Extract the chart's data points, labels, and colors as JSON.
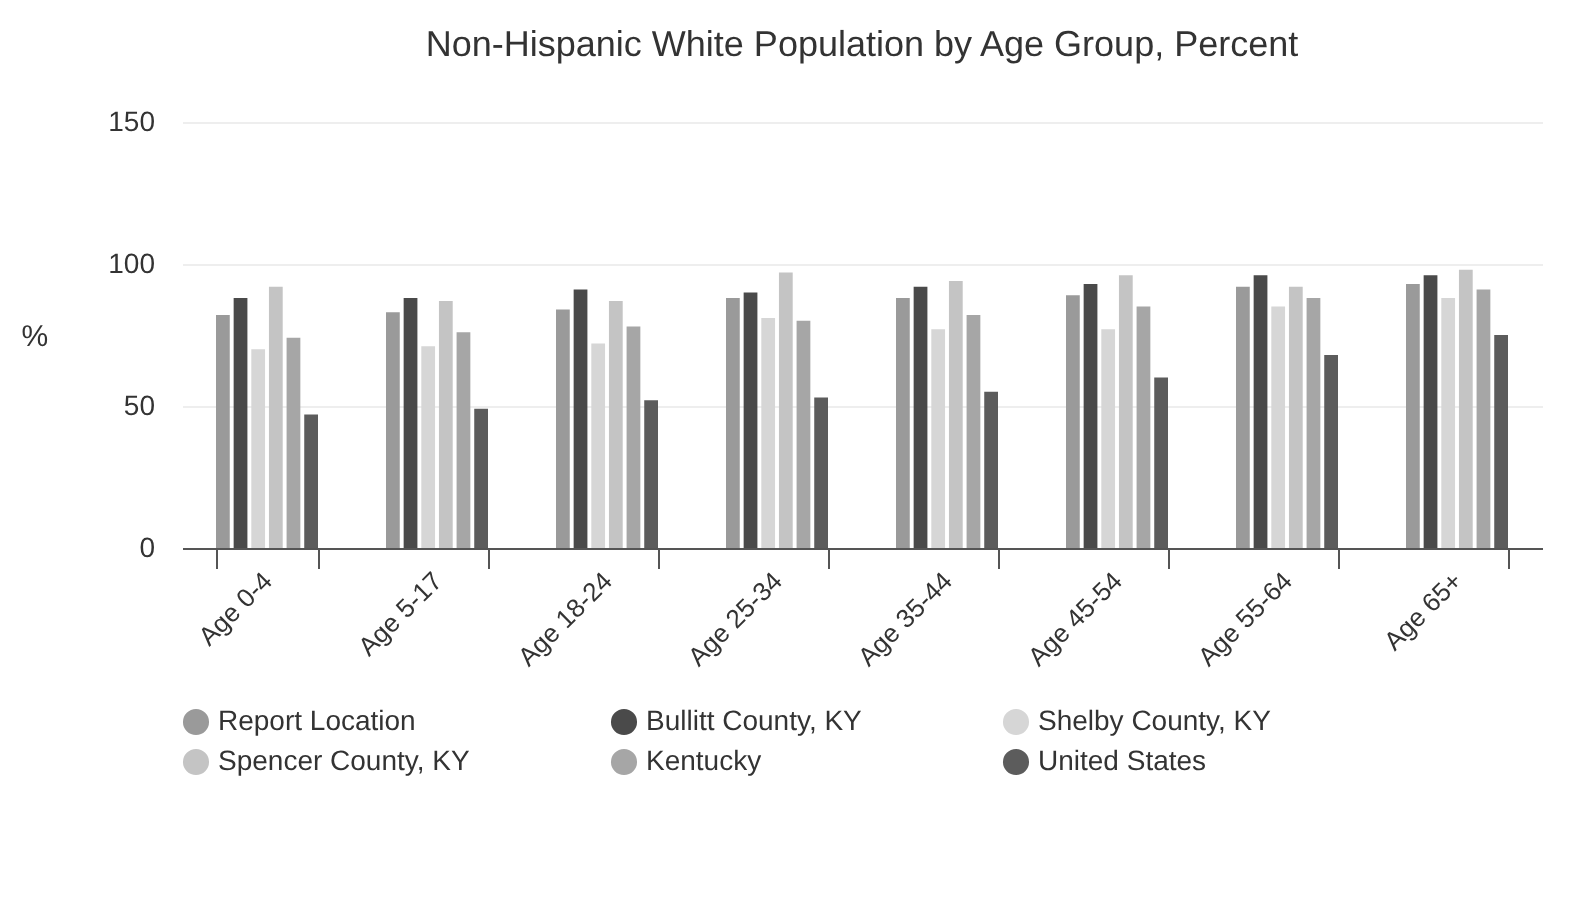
{
  "chart_data": {
    "type": "bar",
    "title": "Non-Hispanic White Population by Age Group, Percent",
    "ylabel": "%",
    "categories": [
      "Age 0-4",
      "Age 5-17",
      "Age 18-24",
      "Age 25-34",
      "Age 35-44",
      "Age 45-54",
      "Age 55-64",
      "Age 65+"
    ],
    "series": [
      {
        "name": "Report Location",
        "color": "#9a9a9a",
        "values": [
          82,
          83,
          84,
          88,
          88,
          89,
          92,
          93
        ]
      },
      {
        "name": "Bullitt County, KY",
        "color": "#4a4a4a",
        "values": [
          88,
          88,
          91,
          90,
          92,
          93,
          96,
          96
        ]
      },
      {
        "name": "Shelby County, KY",
        "color": "#d6d6d6",
        "values": [
          70,
          71,
          72,
          81,
          77,
          77,
          85,
          88
        ]
      },
      {
        "name": "Spencer County, KY",
        "color": "#c4c4c4",
        "values": [
          92,
          87,
          87,
          97,
          94,
          96,
          92,
          98
        ]
      },
      {
        "name": "Kentucky",
        "color": "#a6a6a6",
        "values": [
          74,
          76,
          78,
          80,
          82,
          85,
          88,
          91
        ]
      },
      {
        "name": "United States",
        "color": "#5c5c5c",
        "values": [
          47,
          49,
          52,
          53,
          55,
          60,
          68,
          75
        ]
      }
    ],
    "ylim": [
      0,
      150
    ],
    "yticks": [
      0,
      50,
      100,
      150
    ],
    "grid": "y",
    "legend": "bottom"
  }
}
